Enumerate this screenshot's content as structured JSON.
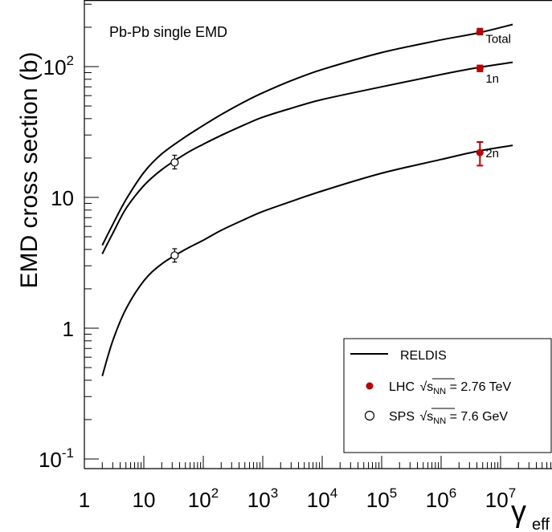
{
  "chart_data": {
    "type": "line",
    "annotation": "Pb-Pb  single EMD",
    "ylabel": "EMD cross section (b)",
    "xlabel_main": "γ",
    "xlabel_sub": "eff",
    "xscale": "log",
    "yscale": "log",
    "xlim": [
      1,
      100000000
    ],
    "ylim": [
      0.1,
      300
    ],
    "grid": false,
    "x_ticks": [
      {
        "value": 1,
        "base": "1",
        "exp": ""
      },
      {
        "value": 10,
        "base": "10",
        "exp": ""
      },
      {
        "value": 100,
        "base": "10",
        "exp": "2"
      },
      {
        "value": 1000,
        "base": "10",
        "exp": "3"
      },
      {
        "value": 10000,
        "base": "10",
        "exp": "4"
      },
      {
        "value": 100000,
        "base": "10",
        "exp": "5"
      },
      {
        "value": 1000000,
        "base": "10",
        "exp": "6"
      },
      {
        "value": 10000000,
        "base": "10",
        "exp": "7"
      }
    ],
    "y_ticks": [
      {
        "value": 0.1,
        "base": "10",
        "exp": "-1"
      },
      {
        "value": 1,
        "base": "1",
        "exp": ""
      },
      {
        "value": 10,
        "base": "10",
        "exp": ""
      },
      {
        "value": 100,
        "base": "10",
        "exp": "2"
      }
    ],
    "series": [
      {
        "label": "Total",
        "style": "line",
        "points": [
          [
            2,
            4.3
          ],
          [
            3,
            6.2
          ],
          [
            5,
            9.6
          ],
          [
            10,
            15.5
          ],
          [
            20,
            21.5
          ],
          [
            50,
            29
          ],
          [
            100,
            35.5
          ],
          [
            200,
            43
          ],
          [
            500,
            54
          ],
          [
            1000,
            63
          ],
          [
            3000,
            78
          ],
          [
            10000,
            95
          ],
          [
            100000,
            128
          ],
          [
            1000000,
            160
          ],
          [
            4000000,
            180
          ],
          [
            16000000,
            210
          ]
        ]
      },
      {
        "label": "1n",
        "style": "line",
        "points": [
          [
            2,
            3.7
          ],
          [
            3,
            5.3
          ],
          [
            5,
            8.2
          ],
          [
            10,
            12.3
          ],
          [
            20,
            16.3
          ],
          [
            50,
            21.5
          ],
          [
            100,
            25.5
          ],
          [
            200,
            29.8
          ],
          [
            500,
            36
          ],
          [
            1000,
            41
          ],
          [
            3000,
            48
          ],
          [
            10000,
            56
          ],
          [
            100000,
            70
          ],
          [
            1000000,
            87
          ],
          [
            4000000,
            98
          ],
          [
            16000000,
            108
          ]
        ]
      },
      {
        "label": "2n",
        "style": "line",
        "points": [
          [
            2,
            0.43
          ],
          [
            3,
            0.8
          ],
          [
            5,
            1.4
          ],
          [
            10,
            2.3
          ],
          [
            20,
            3.1
          ],
          [
            50,
            4.0
          ],
          [
            100,
            4.7
          ],
          [
            200,
            5.6
          ],
          [
            500,
            6.8
          ],
          [
            1000,
            7.8
          ],
          [
            3000,
            9.3
          ],
          [
            10000,
            11.2
          ],
          [
            100000,
            15.3
          ],
          [
            1000000,
            19.5
          ],
          [
            4000000,
            22.5
          ],
          [
            16000000,
            25
          ]
        ]
      }
    ],
    "lhc_points": [
      {
        "label": "Total",
        "x": 4500000,
        "y": 185,
        "err_low": 176,
        "err_high": 195
      },
      {
        "label": "1n",
        "x": 4500000,
        "y": 97,
        "err_low": 92,
        "err_high": 102
      },
      {
        "label": "2n",
        "x": 4500000,
        "y": 22,
        "err_low": 17.5,
        "err_high": 26.5
      }
    ],
    "sps_points": [
      {
        "x": 33,
        "y": 18.5,
        "err_low": 16.5,
        "err_high": 21
      },
      {
        "x": 33,
        "y": 3.6,
        "err_low": 3.2,
        "err_high": 4.05
      }
    ],
    "legend": {
      "position": "bottom-right",
      "entries": [
        {
          "kind": "line",
          "text": "RELDIS"
        },
        {
          "kind": "filled-circle",
          "prefix": "LHC ",
          "sqrt_arg": "s",
          "sqrt_sub": "NN",
          "suffix": " = 2.76 TeV"
        },
        {
          "kind": "open-circle",
          "prefix": "SPS ",
          "sqrt_arg": "s",
          "sqrt_sub": "NN",
          "suffix": " = 7.6 GeV"
        }
      ]
    },
    "colors": {
      "curve": "#000000",
      "lhc": "#c00000",
      "sps": "#000000"
    }
  }
}
